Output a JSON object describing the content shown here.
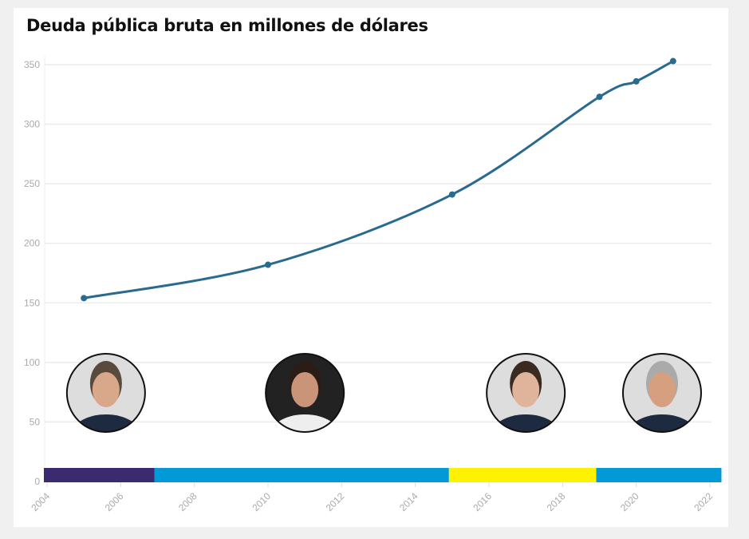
{
  "chart_data": {
    "type": "line",
    "title": "Deuda pública bruta en millones de dólares",
    "xlabel": "",
    "ylabel": "",
    "xlim": [
      2004,
      2022
    ],
    "ylim": [
      0,
      350
    ],
    "grid": true,
    "x_ticks": [
      "2004",
      "2006",
      "2008",
      "2010",
      "2012",
      "2014",
      "2016",
      "2018",
      "2020",
      "2022"
    ],
    "y_ticks": [
      "0",
      "50",
      "100",
      "150",
      "200",
      "250",
      "300",
      "350"
    ],
    "x": [
      2005,
      2010,
      2015,
      2019,
      2020,
      2021
    ],
    "values": [
      154,
      182,
      241,
      323,
      336,
      353
    ],
    "line_color": "#2a6a8f",
    "periods": [
      {
        "start": 2004,
        "end": 2007,
        "color": "#3b2a70"
      },
      {
        "start": 2007,
        "end": 2015,
        "color": "#019ad6"
      },
      {
        "start": 2015,
        "end": 2019,
        "color": "#fff200"
      },
      {
        "start": 2019,
        "end": 2022.4,
        "color": "#019ad6"
      }
    ],
    "portraits": [
      {
        "year": 2005.6,
        "icon": "president-portrait-1"
      },
      {
        "year": 2011,
        "icon": "president-portrait-2"
      },
      {
        "year": 2017,
        "icon": "president-portrait-3"
      },
      {
        "year": 2020.7,
        "icon": "president-portrait-4"
      }
    ]
  }
}
